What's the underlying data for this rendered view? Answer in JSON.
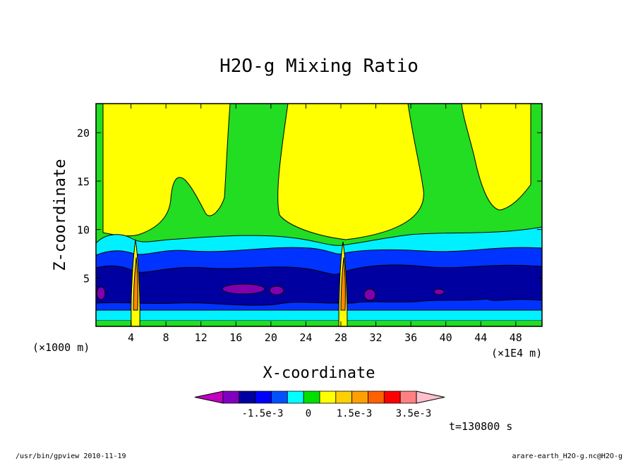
{
  "chart_data": {
    "type": "contour",
    "title": "H2O-g Mixing Ratio",
    "xlabel": "X-coordinate",
    "ylabel": "Z-coordinate",
    "x_unit_left": "(×1000 m)",
    "x_unit_right": "(×1E4 m)",
    "x_ticks": [
      "4",
      "8",
      "12",
      "16",
      "20",
      "24",
      "28",
      "32",
      "36",
      "40",
      "44",
      "48"
    ],
    "y_ticks": [
      "5",
      "10",
      "15",
      "20"
    ],
    "xlim": [
      0,
      51
    ],
    "ylim": [
      0,
      23
    ],
    "colorbar": {
      "colors": [
        "#c000c0",
        "#8000c0",
        "#0000a0",
        "#0000ff",
        "#0050ff",
        "#00ffff",
        "#00e000",
        "#ffff00",
        "#ffd000",
        "#ffa000",
        "#ff6000",
        "#ff0000",
        "#ff8080",
        "#ffc0cb"
      ],
      "labels": [
        "-1.5e-3",
        "0",
        "1.5e-3",
        "3.5e-3"
      ]
    },
    "time_label": "t=130800 s",
    "grid": false
  },
  "footer": {
    "left": "/usr/bin/gpview   2010-11-19",
    "right": "arare-earth_H2O-g.nc@H2O-g"
  },
  "colors": {
    "yellow": "#ffff00",
    "green": "#22dd22",
    "cyan": "#00f0ff",
    "blue": "#0033ff",
    "navy": "#0000a0",
    "purple": "#8000b0",
    "orange": "#ff8800",
    "red": "#ff2200"
  }
}
